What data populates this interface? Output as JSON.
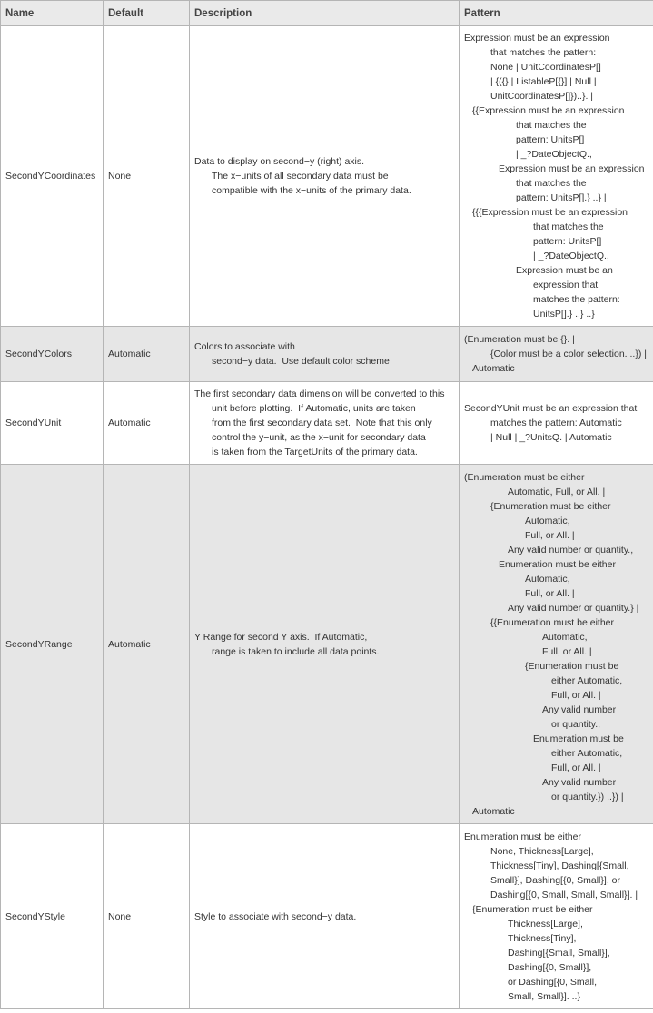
{
  "table": {
    "headers": [
      "Name",
      "Default",
      "Description",
      "Pattern"
    ],
    "rows": [
      {
        "name": "SecondYCoordinates",
        "default": "None",
        "description": [
          "Data to display on second−y (right) axis.",
          "The x−units of all secondary data must be",
          "compatible with the x−units of the primary data."
        ],
        "pattern": [
          "Expression must be an expression",
          "that matches the pattern:",
          "None | UnitCoordinatesP[]",
          "| {({} | ListableP[{}] | Null |",
          "UnitCoordinatesP[]})..}. |",
          "{{Expression must be an expression",
          "that matches the",
          "pattern: UnitsP[]",
          "| _?DateObjectQ.,",
          "Expression must be an expression",
          "that matches the",
          "pattern: UnitsP[].} ..} |",
          "{{{Expression must be an expression",
          "that matches the",
          "pattern: UnitsP[]",
          "| _?DateObjectQ.,",
          "Expression must be an",
          "expression that",
          "matches the pattern:",
          "UnitsP[].} ..} ..}"
        ]
      },
      {
        "name": "SecondYColors",
        "default": "Automatic",
        "description": [
          "Colors to associate with",
          "second−y data.  Use default color scheme"
        ],
        "pattern": [
          "(Enumeration must be {}. |",
          "{Color must be a color selection. ..}) |",
          "Automatic"
        ]
      },
      {
        "name": "SecondYUnit",
        "default": "Automatic",
        "description": [
          "The first secondary data dimension will be converted to this",
          "unit before plotting.  If Automatic, units are taken",
          "from the first secondary data set.  Note that this only",
          "control the y−unit, as the x−unit for secondary data",
          "is taken from the TargetUnits of the primary data."
        ],
        "pattern": [
          "SecondYUnit must be an expression that",
          "matches the pattern: Automatic",
          "| Null | _?UnitsQ. | Automatic"
        ]
      },
      {
        "name": "SecondYRange",
        "default": "Automatic",
        "description": [
          "Y Range for second Y axis.  If Automatic,",
          "range is taken to include all data points."
        ],
        "pattern": [
          "(Enumeration must be either",
          "Automatic, Full, or All. |",
          "{Enumeration must be either",
          "Automatic,",
          "Full, or All. |",
          "Any valid number or quantity.,",
          "Enumeration must be either",
          "Automatic,",
          "Full, or All. |",
          "Any valid number or quantity.} |",
          "{{Enumeration must be either",
          "Automatic,",
          "Full, or All. |",
          "{Enumeration must be",
          "either Automatic,",
          "Full, or All. |",
          "Any valid number",
          "or quantity.,",
          "Enumeration must be",
          "either Automatic,",
          "Full, or All. |",
          "Any valid number",
          "or quantity.}) ..}) |",
          "Automatic"
        ]
      },
      {
        "name": "SecondYStyle",
        "default": "None",
        "description": [
          "Style to associate with second−y data."
        ],
        "pattern": [
          "Enumeration must be either",
          "None, Thickness[Large],",
          "Thickness[Tiny], Dashing[{Small,",
          "Small}], Dashing[{0, Small}], or",
          "Dashing[{0, Small, Small, Small}]. |",
          "{Enumeration must be either",
          "Thickness[Large],",
          "Thickness[Tiny],",
          "Dashing[{Small, Small}],",
          "Dashing[{0, Small}],",
          "or Dashing[{0, Small,",
          "Small, Small}]. ..}"
        ]
      }
    ]
  }
}
